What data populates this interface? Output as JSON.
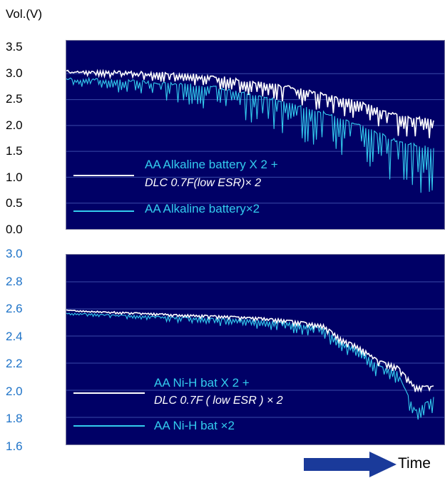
{
  "chart_data": [
    {
      "type": "line",
      "ylabel": "Vol.(V)",
      "xlabel": "Time",
      "ylim": [
        0.0,
        3.5
      ],
      "yticks": [
        "3.5",
        "3.0",
        "2.5",
        "2.0",
        "1.5",
        "1.0",
        "0.5",
        "0.0"
      ],
      "grid": true,
      "series": [
        {
          "name": "AA Alkaline battery X 2 + DLC 0.7F(low ESR)×2",
          "color": "#ffffff",
          "x": [
            0,
            0.1,
            0.2,
            0.3,
            0.4,
            0.5,
            0.6,
            0.7,
            0.8,
            0.9,
            1.0
          ],
          "values": [
            3.05,
            3.04,
            3.02,
            3.0,
            2.95,
            2.85,
            2.75,
            2.6,
            2.45,
            2.2,
            2.1
          ]
        },
        {
          "name": "AA Alkaline battery×2",
          "color": "#33ccee",
          "x": [
            0,
            0.1,
            0.2,
            0.3,
            0.4,
            0.5,
            0.6,
            0.7,
            0.8,
            0.9,
            1.0
          ],
          "values": [
            2.9,
            2.88,
            2.85,
            2.8,
            2.75,
            2.6,
            2.45,
            2.25,
            2.0,
            1.7,
            1.55
          ]
        }
      ]
    },
    {
      "type": "line",
      "xlabel": "Time",
      "ylim": [
        1.6,
        3.0
      ],
      "yticks": [
        "3.0",
        "2.8",
        "2.6",
        "2.4",
        "2.2",
        "2.0",
        "1.8",
        "1.6"
      ],
      "grid": true,
      "series": [
        {
          "name": "AA Ni-H bat X 2 + DLC 0.7F ( low ESR ) × 2",
          "color": "#ffffff",
          "x": [
            0,
            0.1,
            0.2,
            0.3,
            0.4,
            0.5,
            0.6,
            0.7,
            0.75,
            0.8,
            0.85,
            0.9,
            0.95,
            1.0
          ],
          "values": [
            2.59,
            2.58,
            2.57,
            2.56,
            2.55,
            2.54,
            2.52,
            2.48,
            2.38,
            2.32,
            2.22,
            2.18,
            2.03,
            2.03
          ]
        },
        {
          "name": "AA Ni-H bat ×2",
          "color": "#33ccee",
          "x": [
            0,
            0.1,
            0.2,
            0.3,
            0.4,
            0.5,
            0.6,
            0.7,
            0.75,
            0.8,
            0.85,
            0.9,
            0.95,
            1.0
          ],
          "values": [
            2.57,
            2.56,
            2.55,
            2.54,
            2.53,
            2.52,
            2.5,
            2.46,
            2.35,
            2.3,
            2.18,
            2.14,
            1.85,
            1.95
          ]
        }
      ]
    }
  ],
  "labels": {
    "top_unit": "Vol.(V)",
    "time": "Time",
    "top_legend_1a": "AA Alkaline battery X 2    +",
    "top_legend_1b": "DLC 0.7F(low ESR)× 2",
    "top_legend_2": "AA Alkaline battery×2",
    "bot_legend_1a": "AA Ni-H bat X 2  +",
    "bot_legend_1b": "DLC 0.7F ( low ESR ) × 2",
    "bot_legend_2": "AA Ni-H bat  ×2"
  },
  "colors": {
    "plot_bg": "#000066",
    "white_series": "#ffffff",
    "cyan_series": "#33ccee",
    "bottom_tick": "#1e73c8",
    "arrow": "#1a3a9a"
  }
}
